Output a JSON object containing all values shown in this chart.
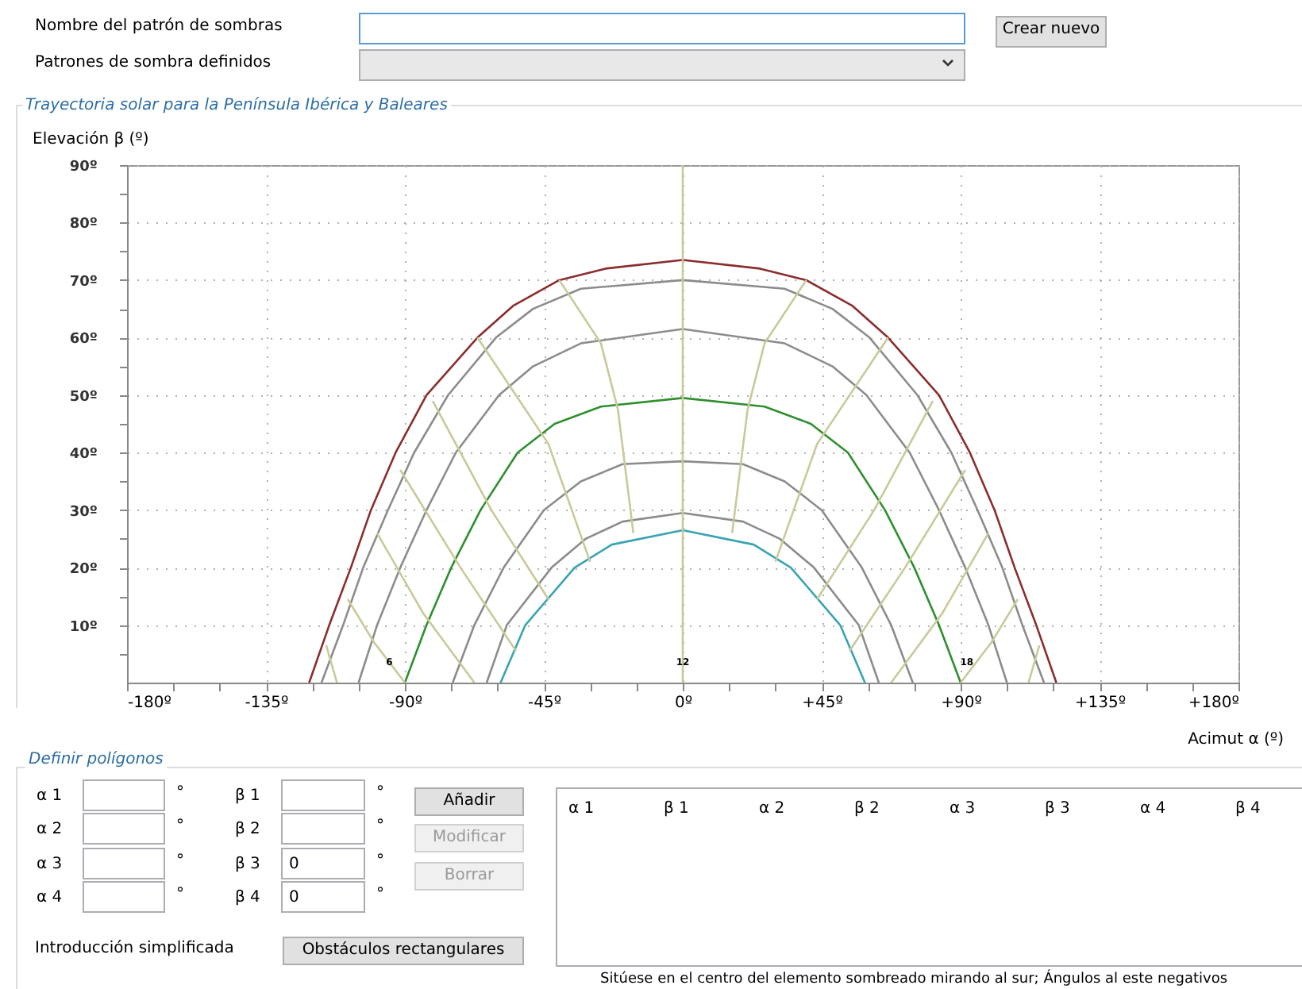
{
  "chart_data": {
    "type": "line",
    "title": "Trayectoria solar para la Península Ibérica y Baleares",
    "xlabel": "Acimut α (º)",
    "ylabel": "Elevación β (º)",
    "xlim": [
      -180,
      180
    ],
    "ylim": [
      0,
      90
    ],
    "xticks": [
      {
        "value": -180,
        "label": "-180º"
      },
      {
        "value": -165,
        "label": null
      },
      {
        "value": -150,
        "label": null
      },
      {
        "value": -135,
        "label": "-135º"
      },
      {
        "value": -120,
        "label": null
      },
      {
        "value": -105,
        "label": null
      },
      {
        "value": -90,
        "label": "-90º"
      },
      {
        "value": -75,
        "label": null
      },
      {
        "value": -60,
        "label": null
      },
      {
        "value": -45,
        "label": "-45º"
      },
      {
        "value": -30,
        "label": null
      },
      {
        "value": -15,
        "label": null
      },
      {
        "value": 0,
        "label": "0º"
      },
      {
        "value": 15,
        "label": null
      },
      {
        "value": 30,
        "label": null
      },
      {
        "value": 45,
        "label": "+45º"
      },
      {
        "value": 60,
        "label": null
      },
      {
        "value": 75,
        "label": null
      },
      {
        "value": 90,
        "label": "+90º"
      },
      {
        "value": 105,
        "label": null
      },
      {
        "value": 120,
        "label": null
      },
      {
        "value": 135,
        "label": "+135º"
      },
      {
        "value": 150,
        "label": null
      },
      {
        "value": 165,
        "label": null
      },
      {
        "value": 180,
        "label": "+180º"
      }
    ],
    "yticks": [
      {
        "value": 5,
        "label": null
      },
      {
        "value": 10,
        "label": "10º"
      },
      {
        "value": 15,
        "label": null
      },
      {
        "value": 20,
        "label": "20º"
      },
      {
        "value": 25,
        "label": null
      },
      {
        "value": 30,
        "label": "30º"
      },
      {
        "value": 35,
        "label": null
      },
      {
        "value": 40,
        "label": "40º"
      },
      {
        "value": 45,
        "label": null
      },
      {
        "value": 50,
        "label": "50º"
      },
      {
        "value": 55,
        "label": null
      },
      {
        "value": 60,
        "label": "60º"
      },
      {
        "value": 65,
        "label": null
      },
      {
        "value": 70,
        "label": "70º"
      },
      {
        "value": 75,
        "label": null
      },
      {
        "value": 80,
        "label": "80º"
      },
      {
        "value": 85,
        "label": null
      },
      {
        "value": 90,
        "label": "90º"
      }
    ],
    "grid": true,
    "series": [
      {
        "color": "#8b2d2d",
        "x": [
          -121,
          -114.5,
          -107.5,
          -101,
          -93,
          -83,
          -66.5,
          -55,
          -40,
          -25,
          0,
          25,
          40,
          55,
          66.5,
          83,
          93,
          101,
          107.5,
          114.5,
          121
        ],
        "values": [
          0,
          10,
          20,
          30,
          40,
          50,
          60,
          65.5,
          70,
          72,
          73.5,
          72,
          70,
          65.5,
          60,
          50,
          40,
          30,
          20,
          10,
          0
        ]
      },
      {
        "color": "#8c8c8c",
        "x": [
          -117,
          -110,
          -103.5,
          -95.5,
          -87,
          -76,
          -60.5,
          -48.5,
          -33,
          0,
          33,
          48.5,
          60.5,
          76,
          87,
          95.5,
          103.5,
          110,
          117
        ],
        "values": [
          0,
          10,
          20,
          30,
          40,
          50,
          60,
          65,
          68.5,
          70,
          68.5,
          65,
          60,
          50,
          40,
          30,
          20,
          10,
          0
        ]
      },
      {
        "color": "#8c8c8c",
        "x": [
          -105,
          -99,
          -91.5,
          -83,
          -73.5,
          -59.5,
          -48.5,
          -33,
          0,
          33,
          48.5,
          59.5,
          73.5,
          83,
          91.5,
          99,
          105
        ],
        "values": [
          0,
          10,
          20,
          30,
          40,
          50,
          55,
          59,
          61.5,
          59,
          55,
          50,
          40,
          30,
          20,
          10,
          0
        ]
      },
      {
        "color": "#2f8f2f",
        "x": [
          -90,
          -83,
          -75,
          -65.5,
          -53.5,
          -41.5,
          -26.5,
          0,
          26.5,
          41.5,
          53.5,
          65.5,
          75,
          83,
          90
        ],
        "values": [
          0,
          10,
          20,
          30,
          40,
          45,
          48,
          49.5,
          48,
          45,
          40,
          30,
          20,
          10,
          0
        ]
      },
      {
        "color": "#8c8c8c",
        "x": [
          -74.5,
          -67.5,
          -58,
          -45,
          -33,
          -19.5,
          0,
          19.5,
          33,
          45,
          58,
          67.5,
          74.5
        ],
        "values": [
          0,
          10,
          20,
          30,
          35,
          38,
          38.5,
          38,
          35,
          30,
          20,
          10,
          0
        ]
      },
      {
        "color": "#8c8c8c",
        "x": [
          -63.5,
          -57,
          -42.5,
          -31.5,
          -19.5,
          0,
          19.5,
          31.5,
          42.5,
          57,
          63.5
        ],
        "values": [
          0,
          10,
          20,
          25,
          28,
          29.5,
          28,
          25,
          20,
          10,
          0
        ]
      },
      {
        "color": "#3aa3b3",
        "x": [
          -59,
          -51,
          -35,
          -23,
          0,
          23,
          35,
          51,
          59
        ],
        "values": [
          0,
          10,
          20,
          24,
          26.5,
          24,
          20,
          10,
          0
        ]
      },
      {
        "color": "#c9c99a",
        "x": [
          -115.5,
          -112
        ],
        "values": [
          6.5,
          0
        ]
      },
      {
        "color": "#c9c99a",
        "x": [
          -108.5,
          -100,
          -90
        ],
        "values": [
          14.5,
          7,
          0
        ]
      },
      {
        "color": "#c9c99a",
        "x": [
          -99,
          -84,
          -67.5
        ],
        "values": [
          26,
          12,
          0
        ]
      },
      {
        "color": "#c9c99a",
        "x": [
          -91.5,
          -72,
          -54
        ],
        "values": [
          37,
          20,
          5.5
        ]
      },
      {
        "color": "#c9c99a",
        "x": [
          -81,
          -62,
          -43.5
        ],
        "values": [
          49,
          30,
          14.5
        ]
      },
      {
        "color": "#c9c99a",
        "x": [
          -66.5,
          -43.5,
          -30
        ],
        "values": [
          60,
          41.5,
          21
        ]
      },
      {
        "color": "#c9c99a",
        "x": [
          -40,
          -26.5,
          -21,
          -16
        ],
        "values": [
          70,
          59,
          47.5,
          26
        ]
      },
      {
        "color": "#c9c99a",
        "x": [
          0,
          0
        ],
        "values": [
          0,
          90
        ]
      },
      {
        "color": "#c9c99a",
        "x": [
          40,
          26.5,
          21,
          16
        ],
        "values": [
          70,
          59,
          47.5,
          26
        ]
      },
      {
        "color": "#c9c99a",
        "x": [
          66.5,
          43.5,
          30
        ],
        "values": [
          60,
          41.5,
          21
        ]
      },
      {
        "color": "#c9c99a",
        "x": [
          81,
          62,
          43.5
        ],
        "values": [
          49,
          30,
          14.5
        ]
      },
      {
        "color": "#c9c99a",
        "x": [
          91.5,
          72,
          54
        ],
        "values": [
          37,
          20,
          5.5
        ]
      },
      {
        "color": "#c9c99a",
        "x": [
          99,
          84,
          67.5
        ],
        "values": [
          26,
          12,
          0
        ]
      },
      {
        "color": "#c9c99a",
        "x": [
          108.5,
          100,
          90
        ],
        "values": [
          14.5,
          7,
          0
        ]
      },
      {
        "color": "#c9c99a",
        "x": [
          115.5,
          112
        ],
        "values": [
          6.5,
          0
        ]
      }
    ],
    "annotations": [
      {
        "text": "6",
        "x": -95,
        "y": 3
      },
      {
        "text": "12",
        "x": 0,
        "y": 3
      },
      {
        "text": "18",
        "x": 92,
        "y": 3
      },
      "Nombre del patrón de sombras",
      "Crear nuevo",
      "Patrones de sombra definidos",
      "Definir polígonos",
      "α 1",
      "α 2",
      "α 3",
      "α 4",
      "β 1",
      "β 2",
      "β 3",
      "β 4",
      "°",
      "°",
      "°",
      "°",
      "°",
      "°",
      "°",
      "°",
      "0",
      "0",
      "Añadir",
      "Modificar",
      "Borrar",
      "Introducción simplificada",
      "Obstáculos rectangulares",
      "α 1",
      "β 1",
      "α 2",
      "β 2",
      "α 3",
      "β 3",
      "α 4",
      "β 4",
      "Sitúese en el centro del elemento sombreado mirando al sur; Ángulos al este negativos"
    ]
  }
}
